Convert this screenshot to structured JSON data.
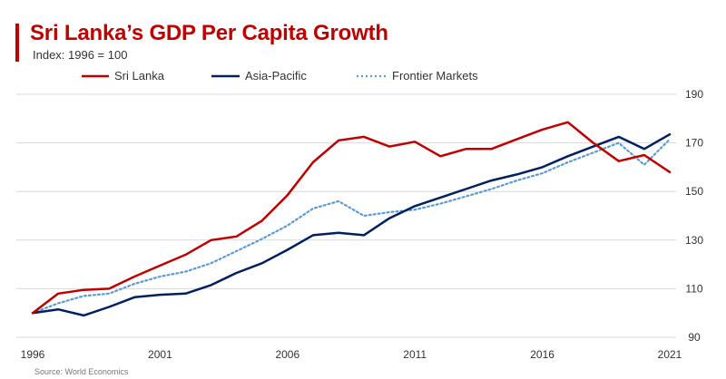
{
  "header": {
    "title": "Sri Lanka’s GDP Per Capita Growth",
    "subtitle": "Index: 1996 = 100"
  },
  "footer": {
    "source": "Source: World Economics"
  },
  "colors": {
    "title": "#c00000",
    "sri_lanka": "#c00000",
    "asia_pacific": "#002060",
    "frontier": "#5b9bd5",
    "grid": "#d9d9d9",
    "axis_text": "#333333"
  },
  "chart_data": {
    "type": "line",
    "title": "Sri Lanka’s GDP Per Capita Growth",
    "subtitle": "Index: 1996 = 100",
    "xlabel": "",
    "ylabel": "",
    "x": [
      1996,
      1997,
      1998,
      1999,
      2000,
      2001,
      2002,
      2003,
      2004,
      2005,
      2006,
      2007,
      2008,
      2009,
      2010,
      2011,
      2012,
      2013,
      2014,
      2015,
      2016,
      2017,
      2018,
      2019,
      2020,
      2021
    ],
    "xlim": [
      1996,
      2021
    ],
    "ylim": [
      90,
      190
    ],
    "xticks": [
      1996,
      2001,
      2006,
      2011,
      2016,
      2021
    ],
    "yticks": [
      90,
      110,
      130,
      150,
      170,
      190
    ],
    "y_axis_position": "right",
    "grid": "horizontal",
    "legend_position": "top",
    "series": [
      {
        "name": "Sri Lanka",
        "style": "solid",
        "values": [
          100,
          108,
          109.5,
          110,
          115,
          119.5,
          124,
          130,
          131.5,
          138,
          148.5,
          162,
          171,
          172.5,
          168.5,
          170.5,
          164.5,
          167.5,
          167.5,
          171.5,
          175.5,
          178.5,
          170,
          162.5,
          165,
          158
        ]
      },
      {
        "name": "Asia-Pacific",
        "style": "solid",
        "values": [
          100,
          101.5,
          99,
          102.5,
          106.5,
          107.5,
          108,
          111.5,
          116.5,
          120.5,
          126,
          132,
          133,
          132,
          139,
          144,
          147.5,
          151,
          154.5,
          157,
          160,
          164.5,
          168.5,
          172.5,
          167.5,
          173.5
        ]
      },
      {
        "name": "Frontier Markets",
        "style": "dotted",
        "values": [
          100,
          104,
          107,
          108,
          112,
          115,
          117,
          120.5,
          125.5,
          130.5,
          136,
          143,
          146,
          140,
          141.5,
          142.5,
          145,
          148,
          151,
          154.5,
          157.5,
          162,
          166,
          170,
          161,
          171.5
        ]
      }
    ]
  }
}
